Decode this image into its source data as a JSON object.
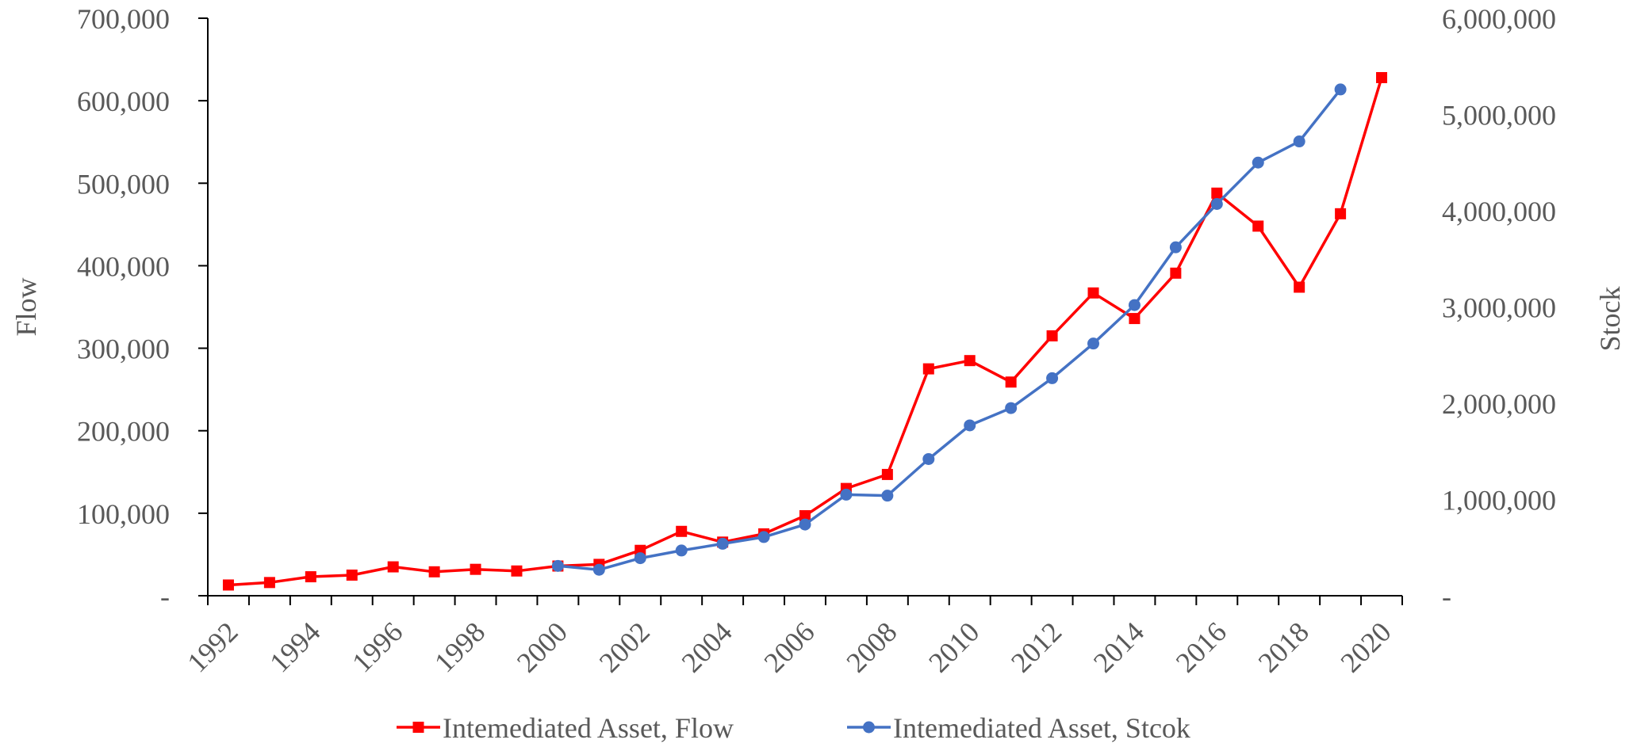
{
  "chart_data": {
    "type": "line",
    "x": [
      "1992",
      "1993",
      "1994",
      "1995",
      "1996",
      "1997",
      "1998",
      "1999",
      "2000",
      "2001",
      "2002",
      "2003",
      "2004",
      "2005",
      "2006",
      "2007",
      "2008",
      "2009",
      "2010",
      "2011",
      "2012",
      "2013",
      "2014",
      "2015",
      "2016",
      "2017",
      "2018",
      "2019",
      "2020"
    ],
    "x_tick_labels": [
      "1992",
      "1994",
      "1996",
      "1998",
      "2000",
      "2002",
      "2004",
      "2006",
      "2008",
      "2010",
      "2012",
      "2014",
      "2016",
      "2018",
      "2020"
    ],
    "series": [
      {
        "name": "Intemediated Asset, Flow",
        "axis": "left",
        "color": "#ff0000",
        "marker": "square",
        "values": [
          13000,
          16000,
          23000,
          25000,
          35000,
          29000,
          32000,
          30000,
          36000,
          38000,
          55000,
          78000,
          65000,
          75000,
          97000,
          130000,
          147000,
          275000,
          285000,
          259000,
          315000,
          367000,
          336000,
          391000,
          488000,
          448000,
          374000,
          463000,
          628000
        ]
      },
      {
        "name": "Intemediated Asset, Stcok",
        "axis": "right",
        "color": "#4472c4",
        "marker": "circle",
        "values": [
          null,
          null,
          null,
          null,
          null,
          null,
          null,
          null,
          310000,
          270000,
          390000,
          470000,
          540000,
          610000,
          740000,
          1050000,
          1040000,
          1420000,
          1770000,
          1950000,
          2260000,
          2620000,
          3020000,
          3620000,
          4070000,
          4500000,
          4720000,
          5260000,
          null
        ]
      }
    ],
    "y_left": {
      "label": "Flow",
      "ylim": [
        0,
        700000
      ],
      "tick_labels": [
        "-",
        "100,000",
        "200,000",
        "300,000",
        "400,000",
        "500,000",
        "600,000",
        "700,000"
      ]
    },
    "y_right": {
      "label": "Stock",
      "ylim": [
        0,
        6000000
      ],
      "tick_labels": [
        "-",
        "1,000,000",
        "2,000,000",
        "3,000,000",
        "4,000,000",
        "5,000,000",
        "6,000,000"
      ]
    },
    "legend_position": "bottom",
    "grid": false
  }
}
